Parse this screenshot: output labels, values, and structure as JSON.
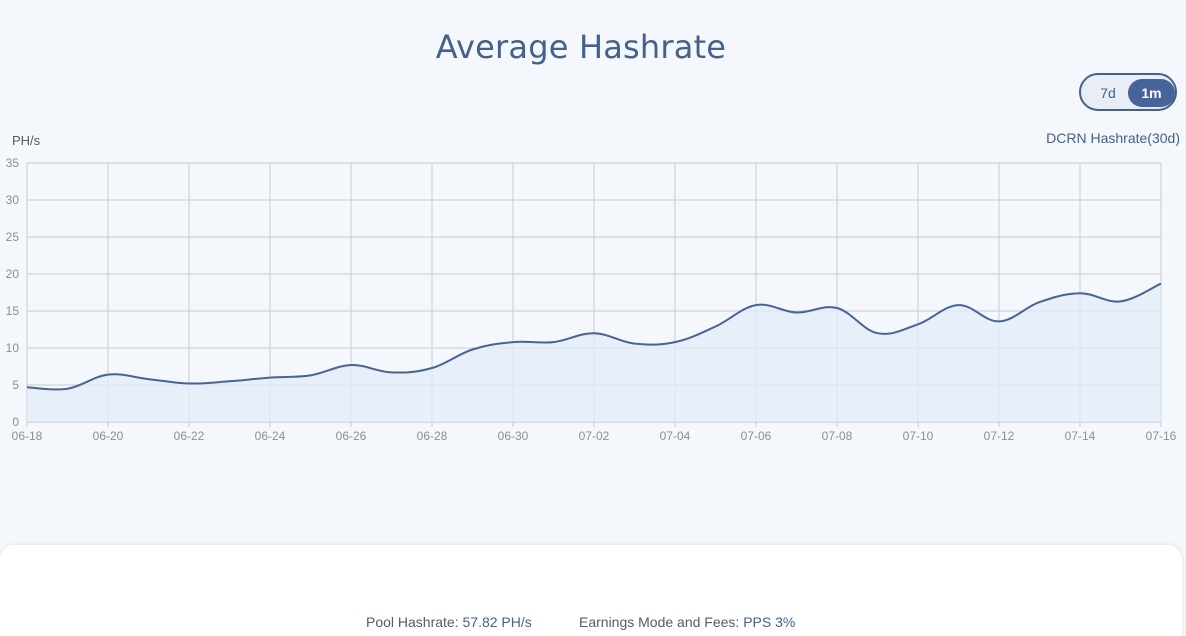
{
  "title": "Average Hashrate",
  "range_toggle": {
    "options": [
      "7d",
      "1m"
    ],
    "selected": "1m"
  },
  "colors": {
    "accent": "#43618f",
    "line": "#46639a",
    "fill": "#e3edf8",
    "grid": "#c9ccd2",
    "axis_text": "#8a8f96"
  },
  "footer": {
    "pool_label": "Pool Hashrate:",
    "pool_value": "57.82 PH/s",
    "fees_label": "Earnings Mode and Fees:",
    "fees_value": "PPS 3%"
  },
  "chart_data": {
    "type": "area",
    "ylabel": "PH/s",
    "ylim": [
      0,
      35
    ],
    "yticks": [
      0,
      5,
      10,
      15,
      20,
      25,
      30,
      35
    ],
    "xlim": [
      "06-18",
      "07-16"
    ],
    "xticks": [
      "06-18",
      "06-20",
      "06-22",
      "06-24",
      "06-26",
      "06-28",
      "06-30",
      "07-02",
      "07-04",
      "07-06",
      "07-08",
      "07-10",
      "07-12",
      "07-14",
      "07-16"
    ],
    "grid": true,
    "legend": "top-right",
    "series": [
      {
        "name": "DCRN Hashrate(30d)",
        "x": [
          "06-18",
          "06-19",
          "06-20",
          "06-21",
          "06-22",
          "06-23",
          "06-24",
          "06-25",
          "06-26",
          "06-27",
          "06-28",
          "06-29",
          "06-30",
          "07-01",
          "07-02",
          "07-03",
          "07-04",
          "07-05",
          "07-06",
          "07-07",
          "07-08",
          "07-09",
          "07-10",
          "07-11",
          "07-12",
          "07-13",
          "07-14",
          "07-15",
          "07-16"
        ],
        "values": [
          4.7,
          4.5,
          6.4,
          5.8,
          5.2,
          5.5,
          6.0,
          6.3,
          7.7,
          6.7,
          7.3,
          9.8,
          10.8,
          10.8,
          12.0,
          10.6,
          10.8,
          12.9,
          15.8,
          14.8,
          15.4,
          12.0,
          13.2,
          15.8,
          13.6,
          16.2,
          17.4,
          16.3,
          18.7
        ]
      }
    ]
  }
}
